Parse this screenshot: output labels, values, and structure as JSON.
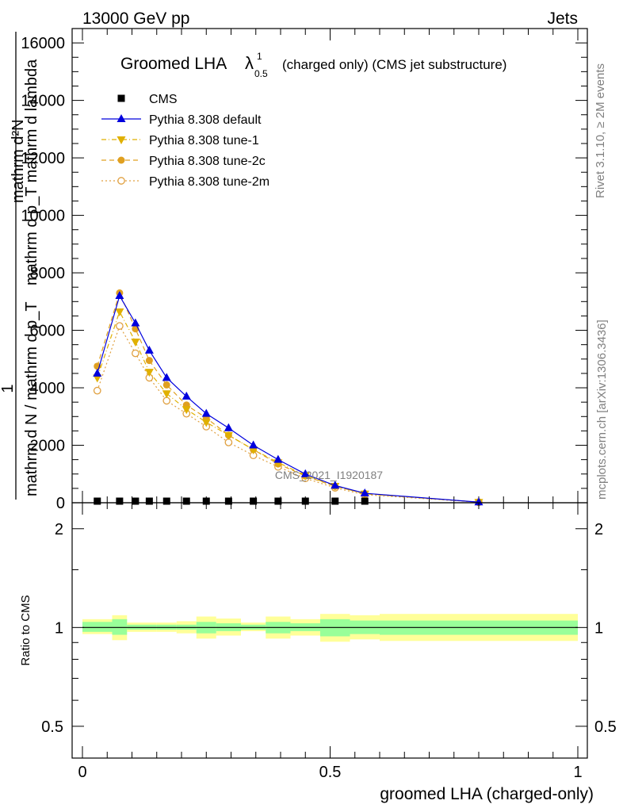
{
  "header": {
    "left": "13000 GeV pp",
    "right": "Jets"
  },
  "side": {
    "rivet": "Rivet 3.1.10, ≥ 2M events",
    "mcplots": "mcplots.cern.ch [arXiv:1306.3436]"
  },
  "watermark": "CMS_2021_I1920187",
  "chart_data": [
    {
      "type": "line",
      "title": {
        "main": "Groomed LHA",
        "lambda": "λ",
        "sup": "1",
        "sub": "0.5",
        "rest": "(charged only) (CMS jet substructure)"
      },
      "ylabel": {
        "top": "mathrm d²N",
        "bottom": "mathrm d p_T mathrm d lambda",
        "overlay_num": "1",
        "overlay_den": "mathrm d N / mathrm d p_T"
      },
      "xlim": [
        0,
        1
      ],
      "ylim": [
        0,
        16500
      ],
      "yticks": [
        0,
        2000,
        4000,
        6000,
        8000,
        10000,
        12000,
        14000,
        16000
      ],
      "ytick_labels": [
        "0",
        "2000",
        "4000",
        "6000",
        "8000",
        "10000",
        "12000",
        "14000",
        "16000"
      ],
      "x": [
        0.03,
        0.075,
        0.107,
        0.135,
        0.17,
        0.21,
        0.25,
        0.295,
        0.345,
        0.395,
        0.45,
        0.51,
        0.57,
        0.8
      ],
      "series": [
        {
          "name": "CMS",
          "color": "#000000",
          "marker": "square",
          "values": [
            30,
            30,
            30,
            30,
            30,
            30,
            30,
            30,
            30,
            30,
            30,
            30,
            30,
            30
          ]
        },
        {
          "name": "Pythia 8.308 default",
          "color": "#0000dd",
          "marker": "triangle-up",
          "dash": "",
          "values": [
            4500,
            7200,
            6250,
            5300,
            4350,
            3700,
            3100,
            2600,
            2000,
            1500,
            1000,
            600,
            330,
            20
          ]
        },
        {
          "name": "Pythia 8.308 tune-1",
          "color": "#e0b000",
          "marker": "triangle-down",
          "dash": "6,3,1,3",
          "values": [
            4350,
            6650,
            5600,
            4550,
            3800,
            3250,
            2800,
            2350,
            1850,
            1400,
            950,
            580,
            310,
            20
          ]
        },
        {
          "name": "Pythia 8.308 tune-2c",
          "color": "#e0a020",
          "marker": "circle",
          "dash": "6,4",
          "values": [
            4750,
            7300,
            6050,
            4950,
            4100,
            3400,
            2950,
            2350,
            1850,
            1350,
            930,
            570,
            320,
            20
          ]
        },
        {
          "name": "Pythia 8.308 tune-2m",
          "color": "#e0a040",
          "marker": "circle-open",
          "dash": "2,3",
          "values": [
            3900,
            6150,
            5200,
            4350,
            3550,
            3100,
            2650,
            2100,
            1650,
            1250,
            850,
            520,
            280,
            20
          ]
        }
      ]
    },
    {
      "type": "area",
      "ylabel": "Ratio to CMS",
      "xlabel": "groomed LHA (charged-only)",
      "xlim": [
        0,
        1
      ],
      "ylim": [
        0.4,
        2.4
      ],
      "yscale": "log",
      "yticks": [
        0.5,
        1,
        2
      ],
      "ytick_labels": [
        "0.5",
        "1",
        "2"
      ],
      "xticks": [
        0,
        0.5,
        1
      ],
      "xtick_labels": [
        "0",
        "0.5",
        "1"
      ],
      "bin_edges": [
        0,
        0.06,
        0.09,
        0.12,
        0.15,
        0.19,
        0.23,
        0.27,
        0.32,
        0.37,
        0.42,
        0.48,
        0.54,
        0.6,
        1.0
      ],
      "band_stat": [
        [
          0.97,
          1.04
        ],
        [
          0.95,
          1.06
        ],
        [
          0.985,
          1.02
        ],
        [
          0.985,
          1.02
        ],
        [
          0.985,
          1.02
        ],
        [
          0.985,
          1.02
        ],
        [
          0.96,
          1.04
        ],
        [
          0.975,
          1.03
        ],
        [
          0.985,
          1.02
        ],
        [
          0.96,
          1.04
        ],
        [
          0.975,
          1.03
        ],
        [
          0.94,
          1.06
        ],
        [
          0.955,
          1.05
        ],
        [
          0.95,
          1.05
        ]
      ],
      "band_total": [
        [
          0.955,
          1.06
        ],
        [
          0.915,
          1.09
        ],
        [
          0.97,
          1.035
        ],
        [
          0.97,
          1.035
        ],
        [
          0.97,
          1.035
        ],
        [
          0.96,
          1.045
        ],
        [
          0.925,
          1.08
        ],
        [
          0.945,
          1.065
        ],
        [
          0.975,
          1.035
        ],
        [
          0.925,
          1.08
        ],
        [
          0.945,
          1.06
        ],
        [
          0.905,
          1.1
        ],
        [
          0.92,
          1.09
        ],
        [
          0.91,
          1.1
        ]
      ],
      "stat_color": "#99ff99",
      "total_color": "#ffff99"
    }
  ]
}
